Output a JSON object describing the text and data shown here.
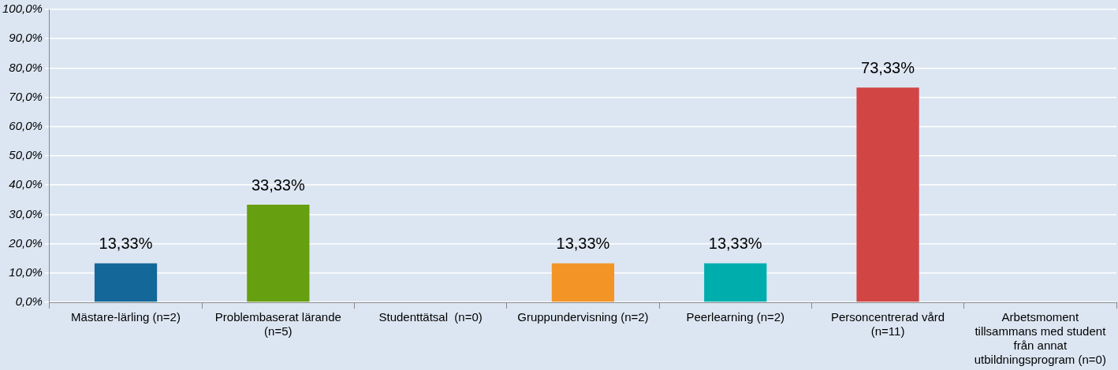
{
  "chart_data": {
    "type": "bar",
    "categories": [
      "Mästare-lärling (n=2)",
      "Problembaserat lärande (n=5)",
      "Studenttätsal  (n=0)",
      "Gruppundervisning (n=2)",
      "Peerlearning (n=2)",
      "Personcentrerad vård (n=11)",
      "Arbetsmoment tillsammans med student från annat utbildningsprogram (n=0)"
    ],
    "values": [
      13.33,
      33.33,
      0,
      13.33,
      13.33,
      73.33,
      0
    ],
    "colors": [
      "#136799",
      "#669f10",
      "#888888",
      "#f39426",
      "#00adad",
      "#d24545",
      "#888888"
    ],
    "value_labels": [
      "13,33%",
      "33,33%",
      null,
      "13,33%",
      "13,33%",
      "73,33%",
      null
    ],
    "ylim": [
      0,
      100
    ],
    "yticks": [
      {
        "value": 0,
        "label": "0,0%"
      },
      {
        "value": 10,
        "label": "10,0%"
      },
      {
        "value": 20,
        "label": "20,0%"
      },
      {
        "value": 30,
        "label": "30,0%"
      },
      {
        "value": 40,
        "label": "40,0%"
      },
      {
        "value": 50,
        "label": "50,0%"
      },
      {
        "value": 60,
        "label": "60,0%"
      },
      {
        "value": 70,
        "label": "70,0%"
      },
      {
        "value": 80,
        "label": "80,0%"
      },
      {
        "value": 90,
        "label": "90,0%"
      },
      {
        "value": 100,
        "label": "100,0%"
      }
    ],
    "grid": "y",
    "legend": false
  }
}
